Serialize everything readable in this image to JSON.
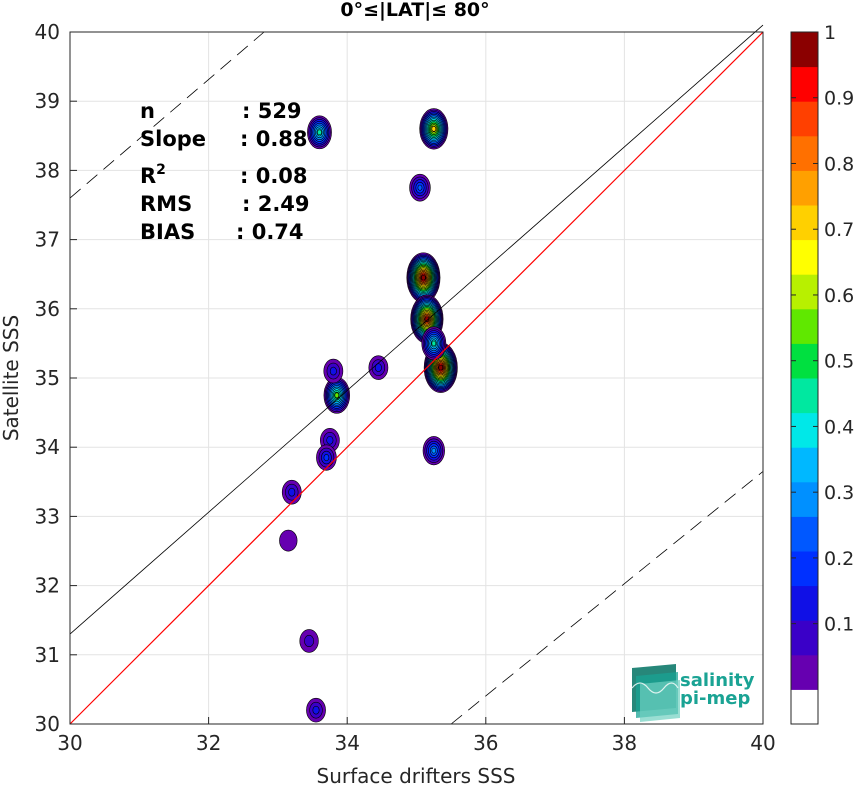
{
  "chart_data": {
    "type": "heatmap",
    "title": "0°≤|LAT|≤ 80°",
    "xlabel": "Surface drifters SSS",
    "ylabel": "Satellite SSS",
    "xlim": [
      30,
      40
    ],
    "ylim": [
      30,
      40
    ],
    "xticks": [
      "30",
      "32",
      "34",
      "36",
      "38",
      "40"
    ],
    "yticks": [
      "30",
      "31",
      "32",
      "33",
      "34",
      "35",
      "36",
      "37",
      "38",
      "39",
      "40"
    ],
    "grid": true,
    "stats": [
      {
        "label": "n",
        "sep": ": ",
        "value": "529"
      },
      {
        "label": "Slope",
        "sep": ": ",
        "value": "0.88"
      },
      {
        "label": "R",
        "sup": "2",
        "sep": ": ",
        "value": "0.08"
      },
      {
        "label": "RMS",
        "sep": ": ",
        "value": "2.49"
      },
      {
        "label": "BIAS",
        "sep": ": ",
        "value": "0.74"
      }
    ],
    "lines": {
      "identity": {
        "color": "#ff0000",
        "points": [
          [
            30,
            30
          ],
          [
            40,
            40
          ]
        ]
      },
      "fit": {
        "color": "#000000",
        "points": [
          [
            30,
            31.3
          ],
          [
            40,
            40.1
          ]
        ]
      },
      "upper_bound": {
        "color": "#000000",
        "points": [
          [
            30,
            37.6
          ],
          [
            32.8,
            40
          ]
        ]
      },
      "lower_bound": {
        "color": "#000000",
        "points": [
          [
            35.5,
            30
          ],
          [
            40,
            33.65
          ]
        ]
      }
    },
    "colorbar": {
      "ticks": [
        "0.1",
        "0.2",
        "0.3",
        "0.4",
        "0.5",
        "0.6",
        "0.7",
        "0.8",
        "0.9",
        "1"
      ],
      "levels": [
        0,
        0.05,
        0.1,
        0.15,
        0.2,
        0.25,
        0.3,
        0.35,
        0.4,
        0.45,
        0.5,
        0.55,
        0.6,
        0.65,
        0.7,
        0.75,
        0.8,
        0.85,
        0.9,
        0.95,
        1.0
      ],
      "colors": [
        "#ffffff",
        "#6600b0",
        "#3a00c8",
        "#1010e6",
        "#0030ff",
        "#0058ff",
        "#0090ff",
        "#00b8ff",
        "#00e8e8",
        "#00e8a0",
        "#00e040",
        "#60e800",
        "#b8f000",
        "#ffff00",
        "#ffd000",
        "#ffa000",
        "#ff7000",
        "#ff4000",
        "#ff0000",
        "#8b0000"
      ]
    },
    "density_clusters": [
      {
        "x": 33.6,
        "y": 38.55,
        "peak": 0.45
      },
      {
        "x": 35.25,
        "y": 38.6,
        "peak": 0.7
      },
      {
        "x": 35.05,
        "y": 37.75,
        "peak": 0.25
      },
      {
        "x": 35.1,
        "y": 36.45,
        "peak": 1.0
      },
      {
        "x": 35.15,
        "y": 35.85,
        "peak": 0.95
      },
      {
        "x": 35.35,
        "y": 35.15,
        "peak": 1.0
      },
      {
        "x": 35.25,
        "y": 35.5,
        "peak": 0.45
      },
      {
        "x": 34.45,
        "y": 35.15,
        "peak": 0.15
      },
      {
        "x": 33.85,
        "y": 34.75,
        "peak": 0.55
      },
      {
        "x": 33.8,
        "y": 35.1,
        "peak": 0.15
      },
      {
        "x": 33.75,
        "y": 34.1,
        "peak": 0.15
      },
      {
        "x": 33.7,
        "y": 33.85,
        "peak": 0.2
      },
      {
        "x": 35.25,
        "y": 33.95,
        "peak": 0.3
      },
      {
        "x": 33.2,
        "y": 33.35,
        "peak": 0.15
      },
      {
        "x": 33.15,
        "y": 32.65,
        "peak": 0.06
      },
      {
        "x": 33.45,
        "y": 31.2,
        "peak": 0.12
      },
      {
        "x": 33.55,
        "y": 30.2,
        "peak": 0.15
      }
    ]
  },
  "logo": {
    "line1": "salinity",
    "line2": "pi-mep",
    "color": "#1aa394"
  }
}
